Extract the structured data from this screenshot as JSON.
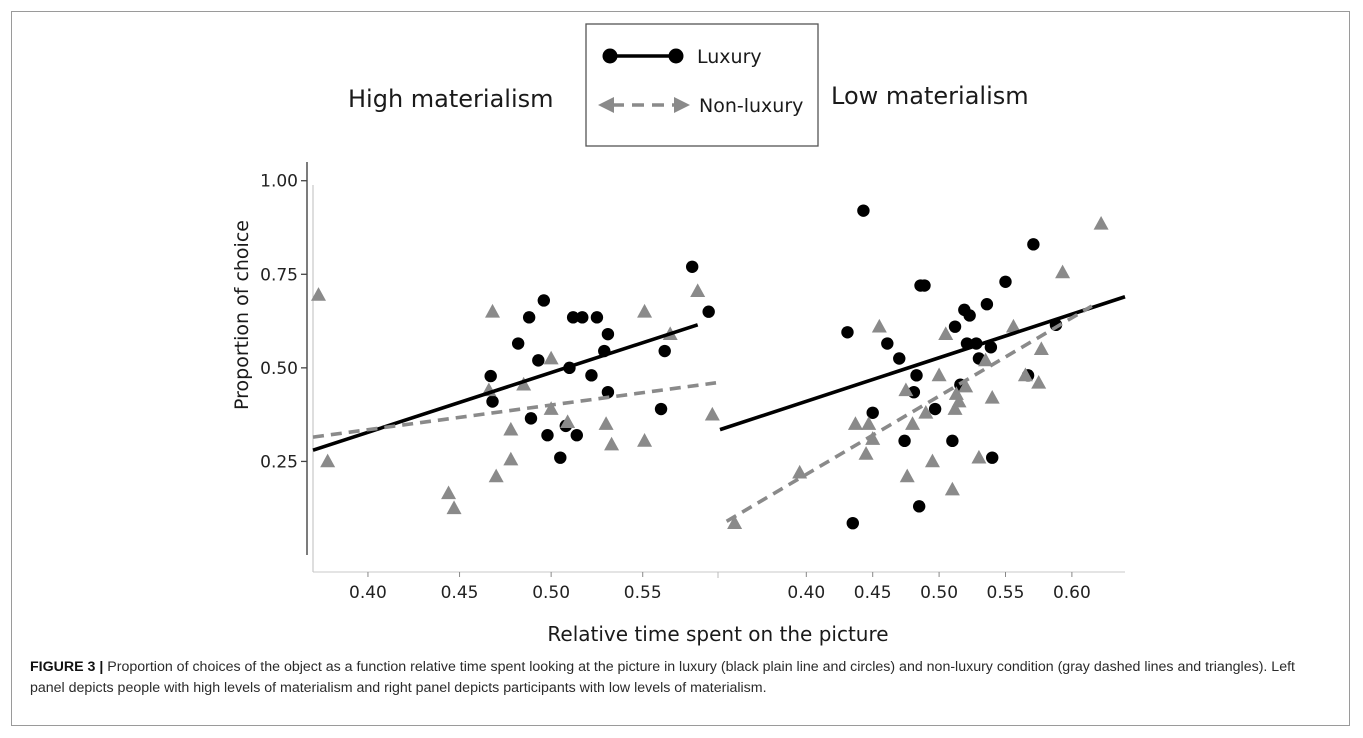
{
  "figure": {
    "caption_label": "FIGURE 3 |",
    "caption_text": " Proportion of choices of the object as a function relative time spent looking at the picture in luxury (black plain line and circles) and non-luxury condition (gray dashed lines and triangles). Left panel depicts people with high levels of materialism and right panel depicts participants with low levels of materialism."
  },
  "legend": {
    "items": [
      {
        "label": "Luxury",
        "style": "solid",
        "marker": "circle",
        "color": "#000000"
      },
      {
        "label": "Non-luxury",
        "style": "dashed",
        "marker": "triangle",
        "color": "#8a8a8a"
      }
    ]
  },
  "axes": {
    "ylabel": "Proportion of choice",
    "xlabel": "Relative time spent on the picture",
    "yticks": [
      "1.00",
      "0.75",
      "0.50",
      "0.25"
    ]
  },
  "chart_data": [
    {
      "type": "scatter",
      "title": "High materialism",
      "xlabel": "Relative time spent on the picture",
      "ylabel": "Proportion of choice",
      "xlim": [
        0.37,
        0.59
      ],
      "ylim": [
        0.0,
        1.05
      ],
      "xticks": [
        "0.40",
        "0.45",
        "0.50",
        "0.55"
      ],
      "series": [
        {
          "name": "Luxury",
          "color": "#000000",
          "marker": "circle",
          "points": [
            [
              0.467,
              0.478
            ],
            [
              0.468,
              0.41
            ],
            [
              0.482,
              0.565
            ],
            [
              0.488,
              0.635
            ],
            [
              0.489,
              0.365
            ],
            [
              0.493,
              0.52
            ],
            [
              0.496,
              0.68
            ],
            [
              0.498,
              0.32
            ],
            [
              0.505,
              0.26
            ],
            [
              0.508,
              0.345
            ],
            [
              0.51,
              0.5
            ],
            [
              0.512,
              0.635
            ],
            [
              0.514,
              0.32
            ],
            [
              0.517,
              0.635
            ],
            [
              0.522,
              0.48
            ],
            [
              0.525,
              0.635
            ],
            [
              0.529,
              0.545
            ],
            [
              0.531,
              0.59
            ],
            [
              0.531,
              0.435
            ],
            [
              0.56,
              0.39
            ],
            [
              0.562,
              0.545
            ],
            [
              0.577,
              0.77
            ],
            [
              0.586,
              0.65
            ]
          ],
          "trend": [
            [
              0.37,
              0.28
            ],
            [
              0.58,
              0.615
            ]
          ]
        },
        {
          "name": "Non-luxury",
          "color": "#8a8a8a",
          "marker": "triangle",
          "points": [
            [
              0.373,
              0.695
            ],
            [
              0.378,
              0.25
            ],
            [
              0.444,
              0.165
            ],
            [
              0.447,
              0.125
            ],
            [
              0.466,
              0.44
            ],
            [
              0.468,
              0.65
            ],
            [
              0.47,
              0.21
            ],
            [
              0.478,
              0.335
            ],
            [
              0.478,
              0.255
            ],
            [
              0.485,
              0.455
            ],
            [
              0.5,
              0.525
            ],
            [
              0.5,
              0.39
            ],
            [
              0.509,
              0.355
            ],
            [
              0.53,
              0.35
            ],
            [
              0.533,
              0.295
            ],
            [
              0.551,
              0.65
            ],
            [
              0.551,
              0.305
            ],
            [
              0.565,
              0.59
            ],
            [
              0.58,
              0.705
            ],
            [
              0.588,
              0.375
            ]
          ],
          "trend": [
            [
              0.37,
              0.315
            ],
            [
              0.59,
              0.46
            ]
          ]
        }
      ]
    },
    {
      "type": "scatter",
      "title": "Low materialism",
      "xlabel": "Relative time spent on the picture",
      "ylabel": "Proportion of choice",
      "xlim": [
        0.335,
        0.64
      ],
      "ylim": [
        0.0,
        1.05
      ],
      "xticks": [
        "0.40",
        "0.45",
        "0.50",
        "0.55",
        "0.60"
      ],
      "series": [
        {
          "name": "Luxury",
          "color": "#000000",
          "marker": "circle",
          "points": [
            [
              0.431,
              0.595
            ],
            [
              0.435,
              0.085
            ],
            [
              0.443,
              0.92
            ],
            [
              0.45,
              0.38
            ],
            [
              0.461,
              0.565
            ],
            [
              0.47,
              0.525
            ],
            [
              0.474,
              0.305
            ],
            [
              0.481,
              0.435
            ],
            [
              0.483,
              0.48
            ],
            [
              0.485,
              0.13
            ],
            [
              0.486,
              0.72
            ],
            [
              0.489,
              0.72
            ],
            [
              0.497,
              0.39
            ],
            [
              0.51,
              0.305
            ],
            [
              0.512,
              0.61
            ],
            [
              0.516,
              0.455
            ],
            [
              0.519,
              0.655
            ],
            [
              0.521,
              0.565
            ],
            [
              0.523,
              0.64
            ],
            [
              0.528,
              0.565
            ],
            [
              0.53,
              0.525
            ],
            [
              0.536,
              0.67
            ],
            [
              0.539,
              0.555
            ],
            [
              0.54,
              0.26
            ],
            [
              0.55,
              0.73
            ],
            [
              0.567,
              0.48
            ],
            [
              0.571,
              0.83
            ],
            [
              0.588,
              0.615
            ]
          ],
          "trend": [
            [
              0.335,
              0.335
            ],
            [
              0.64,
              0.69
            ]
          ]
        },
        {
          "name": "Non-luxury",
          "color": "#8a8a8a",
          "marker": "triangle",
          "points": [
            [
              0.346,
              0.085
            ],
            [
              0.395,
              0.22
            ],
            [
              0.437,
              0.35
            ],
            [
              0.445,
              0.27
            ],
            [
              0.447,
              0.35
            ],
            [
              0.45,
              0.31
            ],
            [
              0.455,
              0.61
            ],
            [
              0.475,
              0.44
            ],
            [
              0.476,
              0.21
            ],
            [
              0.48,
              0.35
            ],
            [
              0.49,
              0.38
            ],
            [
              0.495,
              0.25
            ],
            [
              0.5,
              0.48
            ],
            [
              0.505,
              0.59
            ],
            [
              0.51,
              0.175
            ],
            [
              0.512,
              0.39
            ],
            [
              0.513,
              0.43
            ],
            [
              0.515,
              0.41
            ],
            [
              0.52,
              0.45
            ],
            [
              0.53,
              0.26
            ],
            [
              0.535,
              0.52
            ],
            [
              0.54,
              0.42
            ],
            [
              0.556,
              0.61
            ],
            [
              0.565,
              0.48
            ],
            [
              0.575,
              0.46
            ],
            [
              0.577,
              0.55
            ],
            [
              0.593,
              0.755
            ],
            [
              0.622,
              0.885
            ]
          ],
          "trend": [
            [
              0.34,
              0.09
            ],
            [
              0.615,
              0.665
            ]
          ]
        }
      ]
    }
  ]
}
